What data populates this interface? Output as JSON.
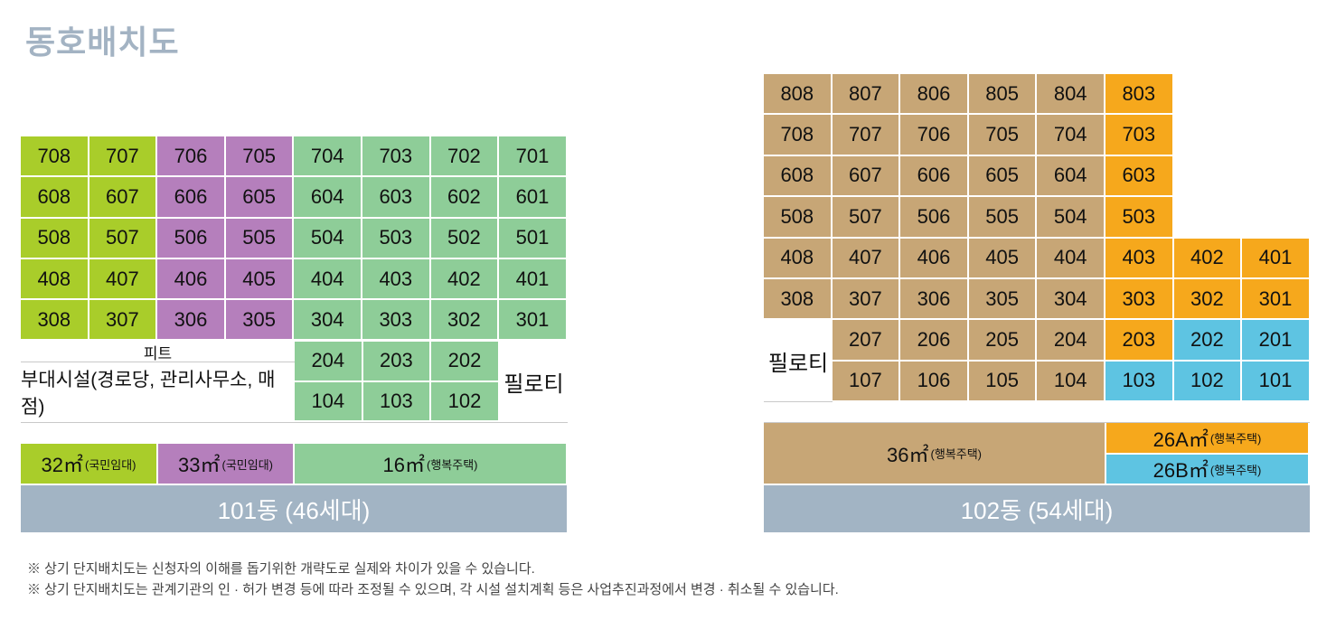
{
  "title": "동호배치도",
  "b101": {
    "grid": [
      [
        "708",
        "707",
        "706",
        "705",
        "704",
        "703",
        "702",
        "701"
      ],
      [
        "608",
        "607",
        "606",
        "605",
        "604",
        "603",
        "602",
        "601"
      ],
      [
        "508",
        "507",
        "506",
        "505",
        "504",
        "503",
        "502",
        "501"
      ],
      [
        "408",
        "407",
        "406",
        "405",
        "404",
        "403",
        "402",
        "401"
      ],
      [
        "308",
        "307",
        "306",
        "305",
        "304",
        "303",
        "302",
        "301"
      ]
    ],
    "col_types": [
      "lime",
      "lime",
      "purple",
      "purple",
      "green",
      "green",
      "green",
      "green"
    ],
    "lower_grid": [
      [
        "204",
        "203",
        "202"
      ],
      [
        "104",
        "103",
        "102"
      ]
    ],
    "pit_label": "피트",
    "facility_label": "부대시설(경로당, 관리사무소, 매점)",
    "piloti_label": "필로티",
    "legend": [
      {
        "size": "32㎡",
        "note": "(국민임대)",
        "type": "lime"
      },
      {
        "size": "33㎡",
        "note": "(국민임대)",
        "type": "purple"
      },
      {
        "size": "16㎡",
        "note": "(행복주택)",
        "type": "green"
      }
    ],
    "label": "101동 (46세대)"
  },
  "b102": {
    "rows": [
      [
        [
          "808",
          "tan"
        ],
        [
          "807",
          "tan"
        ],
        [
          "806",
          "tan"
        ],
        [
          "805",
          "tan"
        ],
        [
          "804",
          "tan"
        ],
        [
          "803",
          "orange"
        ]
      ],
      [
        [
          "708",
          "tan"
        ],
        [
          "707",
          "tan"
        ],
        [
          "706",
          "tan"
        ],
        [
          "705",
          "tan"
        ],
        [
          "704",
          "tan"
        ],
        [
          "703",
          "orange"
        ]
      ],
      [
        [
          "608",
          "tan"
        ],
        [
          "607",
          "tan"
        ],
        [
          "606",
          "tan"
        ],
        [
          "605",
          "tan"
        ],
        [
          "604",
          "tan"
        ],
        [
          "603",
          "orange"
        ]
      ],
      [
        [
          "508",
          "tan"
        ],
        [
          "507",
          "tan"
        ],
        [
          "506",
          "tan"
        ],
        [
          "505",
          "tan"
        ],
        [
          "504",
          "tan"
        ],
        [
          "503",
          "orange"
        ]
      ],
      [
        [
          "408",
          "tan"
        ],
        [
          "407",
          "tan"
        ],
        [
          "406",
          "tan"
        ],
        [
          "405",
          "tan"
        ],
        [
          "404",
          "tan"
        ],
        [
          "403",
          "orange"
        ],
        [
          "402",
          "orange"
        ],
        [
          "401",
          "orange"
        ]
      ],
      [
        [
          "308",
          "tan"
        ],
        [
          "307",
          "tan"
        ],
        [
          "306",
          "tan"
        ],
        [
          "305",
          "tan"
        ],
        [
          "304",
          "tan"
        ],
        [
          "303",
          "orange"
        ],
        [
          "302",
          "orange"
        ],
        [
          "301",
          "orange"
        ]
      ],
      [
        null,
        [
          "207",
          "tan"
        ],
        [
          "206",
          "tan"
        ],
        [
          "205",
          "tan"
        ],
        [
          "204",
          "tan"
        ],
        [
          "203",
          "orange"
        ],
        [
          "202",
          "blue"
        ],
        [
          "201",
          "blue"
        ]
      ],
      [
        null,
        [
          "107",
          "tan"
        ],
        [
          "106",
          "tan"
        ],
        [
          "105",
          "tan"
        ],
        [
          "104",
          "tan"
        ],
        [
          "103",
          "blue"
        ],
        [
          "102",
          "blue"
        ],
        [
          "101",
          "blue"
        ]
      ]
    ],
    "piloti_label": "필로티",
    "legend_main": {
      "size": "36㎡",
      "note": "(행복주택)",
      "type": "tan"
    },
    "legend_a": {
      "size": "26A㎡",
      "note": "(행복주택)",
      "type": "orange"
    },
    "legend_b": {
      "size": "26B㎡",
      "note": "(행복주택)",
      "type": "blue"
    },
    "label": "102동 (54세대)"
  },
  "notes": [
    "※ 상기 단지배치도는 신청자의 이해를 돕기위한 개략도로 실제와 차이가 있을 수 있습니다.",
    "※ 상기 단지배치도는 관계기관의 인 · 허가 변경 등에 따라 조정될 수 있으며, 각 시설 설치계획 등은 사업추진과정에서 변경 · 취소될 수 있습니다."
  ],
  "colors": {
    "lime": "#a9cd2a",
    "purple": "#b57fbc",
    "green": "#8ecd98",
    "tan": "#c7a676",
    "orange": "#f6a81c",
    "blue": "#5ec4e2",
    "label_bg": "#a2b4c4",
    "title": "#a3b3c3"
  }
}
